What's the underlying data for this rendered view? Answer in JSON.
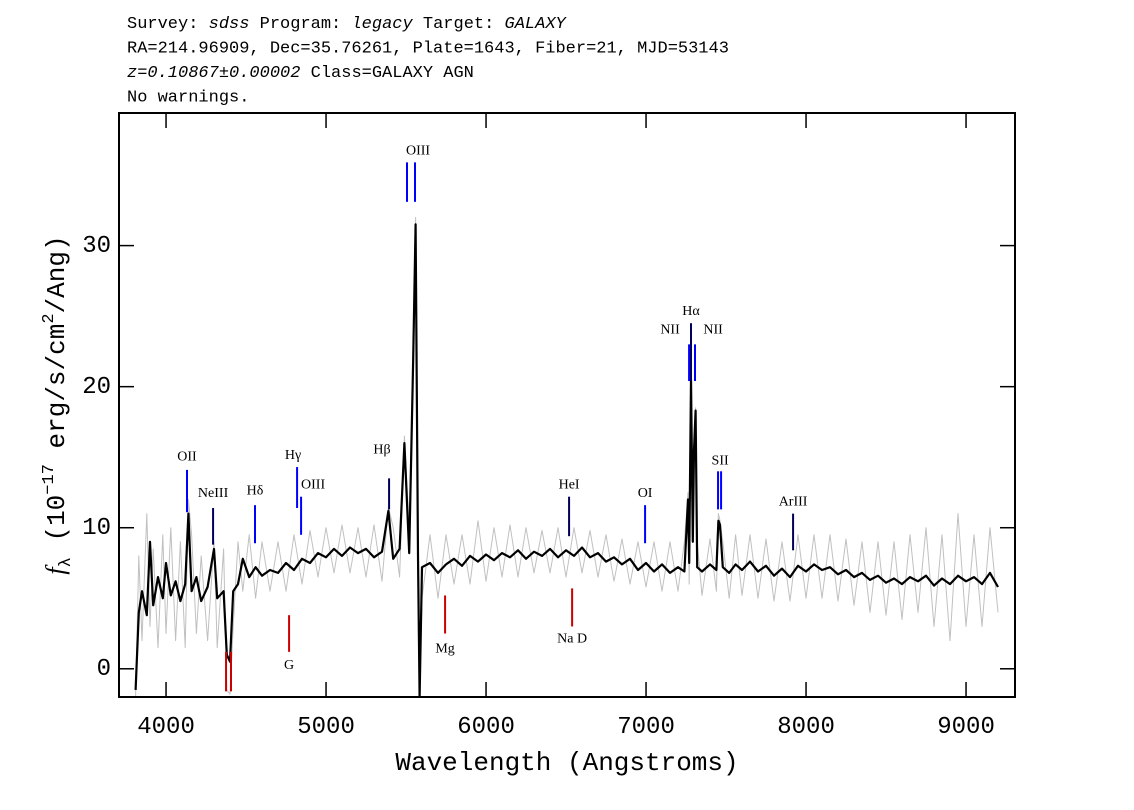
{
  "chart_data": {
    "type": "line",
    "header": [
      [
        {
          "text": "Survey: ",
          "italic": false
        },
        {
          "text": "sdss",
          "italic": true
        },
        {
          "text": " Program: ",
          "italic": false
        },
        {
          "text": "legacy",
          "italic": true
        },
        {
          "text": " Target: ",
          "italic": false
        },
        {
          "text": "GALAXY",
          "italic": true
        }
      ],
      [
        {
          "text": "RA=214.96909, Dec=35.76261, Plate=1643, Fiber=21, MJD=53143",
          "italic": false
        }
      ],
      [
        {
          "text": "z=0.10867±0.00002",
          "italic": true
        },
        {
          "text": " Class=GALAXY AGN",
          "italic": false
        }
      ],
      [
        {
          "text": "No warnings.",
          "italic": false
        }
      ]
    ],
    "xlabel": "Wavelength (Angstroms)",
    "ylabel": [
      {
        "text": "f",
        "style": "italic"
      },
      {
        "text": "λ",
        "style": "sub"
      },
      {
        "text": " (10",
        "style": "normal"
      },
      {
        "text": "−17",
        "style": "sup"
      },
      {
        "text": " erg/s/cm",
        "style": "normal"
      },
      {
        "text": "2",
        "style": "sup"
      },
      {
        "text": "/Ang)",
        "style": "normal"
      }
    ],
    "xlim": [
      3706,
      9306
    ],
    "ylim": [
      -2,
      39.4
    ],
    "xticks": [
      4000,
      5000,
      6000,
      7000,
      8000,
      9000
    ],
    "yticks": [
      0,
      10,
      20,
      30
    ],
    "x": [
      3810,
      3830,
      3850,
      3880,
      3900,
      3920,
      3950,
      3980,
      4000,
      4030,
      4060,
      4090,
      4120,
      4140,
      4160,
      4190,
      4220,
      4260,
      4300,
      4320,
      4360,
      4380,
      4400,
      4420,
      4450,
      4480,
      4520,
      4560,
      4600,
      4650,
      4700,
      4750,
      4800,
      4850,
      4900,
      4950,
      5000,
      5050,
      5100,
      5150,
      5200,
      5250,
      5300,
      5350,
      5390,
      5420,
      5460,
      5490,
      5520,
      5545,
      5560,
      5575,
      5585,
      5600,
      5650,
      5700,
      5750,
      5800,
      5850,
      5900,
      5950,
      6000,
      6050,
      6100,
      6150,
      6200,
      6250,
      6300,
      6350,
      6400,
      6450,
      6500,
      6550,
      6600,
      6650,
      6700,
      6750,
      6800,
      6850,
      6900,
      6950,
      7000,
      7050,
      7100,
      7150,
      7200,
      7240,
      7262,
      7270,
      7281,
      7292,
      7300,
      7310,
      7320,
      7350,
      7400,
      7440,
      7452,
      7462,
      7480,
      7520,
      7560,
      7600,
      7650,
      7700,
      7750,
      7800,
      7850,
      7900,
      7950,
      8000,
      8050,
      8100,
      8150,
      8200,
      8250,
      8300,
      8350,
      8400,
      8450,
      8500,
      8550,
      8600,
      8650,
      8700,
      8750,
      8800,
      8850,
      8900,
      8950,
      9000,
      9050,
      9100,
      9150,
      9200
    ],
    "series": [
      {
        "color": "#c0c0c0",
        "width": 1,
        "values": [
          -2.0,
          8.0,
          2.0,
          11.0,
          3.0,
          8.5,
          1.5,
          9.5,
          2.5,
          10.0,
          2.0,
          9.0,
          1.5,
          12.0,
          9.5,
          2.5,
          8.0,
          2.0,
          9.0,
          1.5,
          8.5,
          -1.5,
          -1.8,
          3.0,
          9.0,
          5.5,
          9.5,
          5.0,
          9.0,
          5.5,
          9.0,
          5.5,
          9.5,
          6.0,
          9.8,
          6.5,
          10.0,
          6.8,
          10.2,
          6.8,
          10.0,
          6.5,
          10.2,
          6.2,
          11.5,
          10.0,
          6.5,
          16.5,
          10.0,
          22.5,
          32.0,
          10.0,
          -2.0,
          5.0,
          9.5,
          5.0,
          9.5,
          6.0,
          9.5,
          6.0,
          10.5,
          6.2,
          10.0,
          6.5,
          10.2,
          6.5,
          10.0,
          6.8,
          9.8,
          6.8,
          10.0,
          6.5,
          10.0,
          6.8,
          9.8,
          6.5,
          9.5,
          6.2,
          9.2,
          6.0,
          9.0,
          5.8,
          9.0,
          5.5,
          9.0,
          5.5,
          9.0,
          12.5,
          6.0,
          21.0,
          10.0,
          16.0,
          18.5,
          9.0,
          5.2,
          9.2,
          5.5,
          11.0,
          10.5,
          9.0,
          5.0,
          9.5,
          5.2,
          9.5,
          5.0,
          9.2,
          4.8,
          9.0,
          4.8,
          9.5,
          5.0,
          9.5,
          5.0,
          9.5,
          4.8,
          9.2,
          4.5,
          9.0,
          4.0,
          9.0,
          3.8,
          9.0,
          3.5,
          9.5,
          4.0,
          10.0,
          3.0,
          9.5,
          2.0,
          11.0,
          3.0,
          9.5,
          3.0,
          10.0,
          4.0
        ]
      },
      {
        "color": "#000000",
        "width": 2.2,
        "values": [
          -1.5,
          4.0,
          5.5,
          3.8,
          9.0,
          4.5,
          6.5,
          5.0,
          7.5,
          5.2,
          6.2,
          4.8,
          6.0,
          11.0,
          5.5,
          6.5,
          4.8,
          5.8,
          8.5,
          5.0,
          5.5,
          1.0,
          0.5,
          5.5,
          6.0,
          7.8,
          6.5,
          7.2,
          6.6,
          7.0,
          6.8,
          7.5,
          7.0,
          7.8,
          7.5,
          8.2,
          7.9,
          8.5,
          8.0,
          8.6,
          8.2,
          8.5,
          7.9,
          8.3,
          11.2,
          7.8,
          8.5,
          16.0,
          8.2,
          22.0,
          31.5,
          8.0,
          -2.0,
          7.2,
          7.5,
          6.8,
          7.4,
          7.8,
          7.3,
          8.0,
          7.6,
          8.1,
          7.7,
          8.2,
          7.9,
          8.4,
          7.8,
          8.3,
          8.0,
          8.5,
          7.9,
          8.4,
          8.0,
          8.6,
          7.9,
          8.2,
          7.6,
          7.9,
          7.4,
          7.8,
          7.0,
          7.5,
          6.9,
          7.4,
          6.8,
          7.2,
          6.9,
          12.0,
          7.5,
          20.5,
          9.0,
          15.5,
          18.3,
          7.2,
          6.9,
          7.4,
          7.0,
          10.5,
          10.2,
          7.2,
          6.8,
          7.4,
          7.0,
          7.6,
          6.9,
          7.3,
          6.6,
          7.1,
          6.5,
          7.3,
          6.9,
          7.4,
          7.0,
          7.2,
          6.7,
          7.0,
          6.5,
          6.8,
          6.3,
          6.6,
          6.1,
          6.4,
          6.0,
          6.5,
          6.2,
          6.6,
          5.9,
          6.4,
          6.0,
          6.6,
          6.2,
          6.5,
          6.0,
          6.8,
          5.8
        ]
      }
    ],
    "annotations": [
      {
        "label": "OII",
        "x": [
          4131
        ],
        "y": [
          11.1,
          14.1
        ],
        "label_x": 4131,
        "label_y": 15.0,
        "color": "#0000ff"
      },
      {
        "label": "NeIII",
        "x": [
          4294
        ],
        "y": [
          8.8,
          11.4
        ],
        "label_x": 4294,
        "label_y": 12.4,
        "color": "#00005a"
      },
      {
        "label": "Hδ",
        "x": [
          4556
        ],
        "y": [
          8.9,
          11.6
        ],
        "label_x": 4556,
        "label_y": 12.6,
        "color": "#0000ff"
      },
      {
        "label": "Hγ",
        "x": [
          4819
        ],
        "y": [
          11.4,
          14.3
        ],
        "label_x": 4794,
        "label_y": 15.1,
        "color": "#0000ff"
      },
      {
        "label": "OIII",
        "x": [
          4844
        ],
        "y": [
          9.5,
          12.2
        ],
        "label_x": 4919,
        "label_y": 13.0,
        "color": "#0000ff"
      },
      {
        "label": "Hβ",
        "x": [
          5394
        ],
        "y": [
          11.3,
          13.5
        ],
        "label_x": 5350,
        "label_y": 15.5,
        "color": "#00005a"
      },
      {
        "label": "OIII",
        "x": [
          5506,
          5556
        ],
        "y": [
          33.1,
          35.9
        ],
        "label_x": 5575,
        "label_y": 36.7,
        "color": "#0000ff"
      },
      {
        "label": "HeI",
        "x": [
          6519
        ],
        "y": [
          9.4,
          12.2
        ],
        "label_x": 6519,
        "label_y": 13.0,
        "color": "#00005a"
      },
      {
        "label": "OI",
        "x": [
          6994
        ],
        "y": [
          8.9,
          11.6
        ],
        "label_x": 6994,
        "label_y": 12.4,
        "color": "#0000ff"
      },
      {
        "label": "NII",
        "x": [
          7269
        ],
        "y": [
          20.4,
          23.0
        ],
        "label_x": 7150,
        "label_y": 24.0,
        "color": "#0000ff"
      },
      {
        "label": "Hα",
        "x": [
          7281
        ],
        "y": [
          20.4,
          24.5
        ],
        "label_x": 7281,
        "label_y": 25.3,
        "color": "#00005a"
      },
      {
        "label": "NII",
        "x": [
          7306
        ],
        "y": [
          20.4,
          23.0
        ],
        "label_x": 7419,
        "label_y": 24.0,
        "color": "#0000ff"
      },
      {
        "label": "SII",
        "x": [
          7450,
          7469
        ],
        "y": [
          11.3,
          14.0
        ],
        "label_x": 7463,
        "label_y": 14.7,
        "color": "#0000ff"
      },
      {
        "label": "ArIII",
        "x": [
          7919
        ],
        "y": [
          8.4,
          11.0
        ],
        "label_x": 7919,
        "label_y": 11.8,
        "color": "#00005a"
      },
      {
        "x": [
          4375,
          4406
        ],
        "y": [
          -1.6,
          1.2
        ],
        "color": "#cc0000"
      },
      {
        "label": "G",
        "x": [
          4769
        ],
        "y": [
          1.2,
          3.8
        ],
        "label_x": 4769,
        "label_y": 0.2,
        "color": "#cc0000"
      },
      {
        "label": "Mg",
        "x": [
          5744
        ],
        "y": [
          2.5,
          5.2
        ],
        "label_x": 5744,
        "label_y": 1.4,
        "color": "#cc0000"
      },
      {
        "label": "Na D",
        "x": [
          6538
        ],
        "y": [
          3.0,
          5.7
        ],
        "label_x": 6538,
        "label_y": 2.1,
        "color": "#cc0000"
      }
    ]
  }
}
